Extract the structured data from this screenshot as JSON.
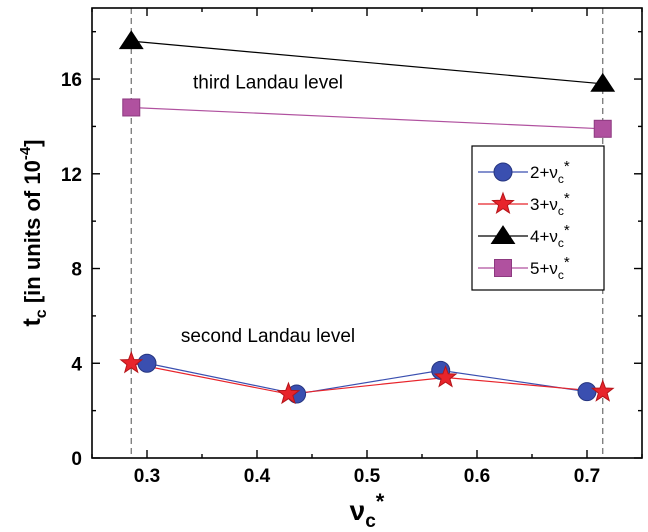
{
  "chart_data": {
    "type": "line",
    "x_range": [
      0.25,
      0.75
    ],
    "y_range": [
      0,
      19
    ],
    "x_ticks": [
      "0.3",
      "0.4",
      "0.5",
      "0.6",
      "0.7"
    ],
    "y_ticks": [
      "0",
      "4",
      "8",
      "12",
      "16"
    ],
    "xlabel": {
      "symbol": "ν",
      "sub": "c",
      "sup": "*"
    },
    "ylabel": {
      "symbol": "t",
      "sub": "c",
      "text": " [in units of 10",
      "sup": "-4",
      "close": "]"
    },
    "vertical_reference_lines_x": [
      0.2857,
      0.7143
    ],
    "series": [
      {
        "legend": {
          "base": "2+ν",
          "sub": "c",
          "sup": "*"
        },
        "color": "#3a4fb0",
        "marker": "circle",
        "x": [
          0.3,
          0.436,
          0.567,
          0.7
        ],
        "y": [
          4.0,
          2.7,
          3.7,
          2.8
        ]
      },
      {
        "legend": {
          "base": "3+ν",
          "sub": "c",
          "sup": "*"
        },
        "color": "#e8242b",
        "marker": "star",
        "x": [
          0.2857,
          0.4286,
          0.5714,
          0.7143
        ],
        "y": [
          4.0,
          2.7,
          3.4,
          2.8
        ]
      },
      {
        "legend": {
          "base": "4+ν",
          "sub": "c",
          "sup": "*"
        },
        "color": "#000000",
        "marker": "triangle",
        "x": [
          0.2857,
          0.7143
        ],
        "y": [
          17.6,
          15.8
        ]
      },
      {
        "legend": {
          "base": "5+ν",
          "sub": "c",
          "sup": "*"
        },
        "color": "#b0519f",
        "marker": "square",
        "x": [
          0.2857,
          0.7143
        ],
        "y": [
          14.8,
          13.9
        ]
      }
    ],
    "annotations": [
      {
        "text": "third Landau level",
        "x": 0.41,
        "y": 15.6
      },
      {
        "text": "second Landau level",
        "x": 0.41,
        "y": 4.9
      }
    ],
    "legend_position": "right"
  }
}
